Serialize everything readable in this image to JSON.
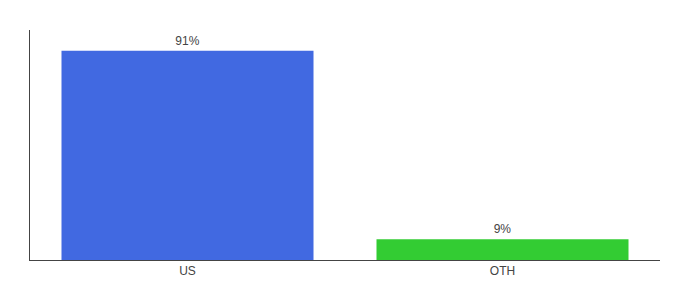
{
  "chart_data": {
    "type": "bar",
    "categories": [
      "US",
      "OTH"
    ],
    "values": [
      91,
      9
    ],
    "value_labels": [
      "91%",
      "9%"
    ],
    "colors": [
      "#4169e1",
      "#33cc33"
    ],
    "ylim": [
      0,
      100
    ],
    "data_labels": true,
    "tick_labels": "x",
    "grid": false
  }
}
